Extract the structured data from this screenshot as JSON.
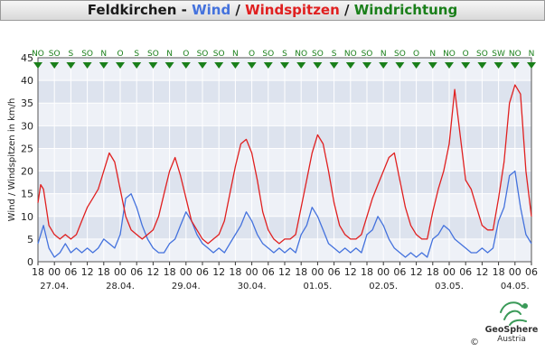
{
  "title": {
    "station": "Feldkirchen",
    "sep1": " - ",
    "wind": "Wind",
    "sep2": " / ",
    "gusts": "Windspitzen",
    "sep3": " / ",
    "direction": "Windrichtung"
  },
  "colors": {
    "wind": "#4472dd",
    "gusts": "#e02020",
    "direction": "#1a7f1a",
    "band_dark": "#dde3ee",
    "band_light": "#eef1f7"
  },
  "logo": {
    "brand": "GeoSphere",
    "country": "Austria",
    "copyright": "©"
  },
  "chart_data": {
    "type": "line",
    "ylabel": "Wind / Windspitzen in km/h",
    "ylim": [
      0,
      45
    ],
    "yticks": [
      0,
      5,
      10,
      15,
      20,
      25,
      30,
      35,
      40,
      45
    ],
    "xlim": [
      0,
      180
    ],
    "x_unit": "hours since 27.04. 18:00",
    "xtick_labels": [
      "18",
      "00",
      "06",
      "12",
      "18",
      "00",
      "06",
      "12",
      "18",
      "00",
      "06",
      "12",
      "18",
      "00",
      "06",
      "12",
      "18",
      "00",
      "06",
      "12",
      "18",
      "00",
      "06",
      "12",
      "18",
      "00",
      "06",
      "12",
      "18",
      "00",
      "06"
    ],
    "date_labels": [
      "27.04.",
      "28.04.",
      "29.04.",
      "30.04.",
      "01.05.",
      "02.05.",
      "03.05.",
      "04.05."
    ],
    "direction_labels": [
      "NO",
      "SO",
      "S",
      "SO",
      "N",
      "O",
      "S",
      "SO",
      "N",
      "O",
      "SO",
      "SO",
      "N",
      "O",
      "SO",
      "S",
      "NO",
      "SO",
      "S",
      "NO",
      "SO",
      "N",
      "SO",
      "O",
      "N",
      "NO",
      "O",
      "SO",
      "SW",
      "NO",
      "N"
    ],
    "series": [
      {
        "name": "Wind",
        "color": "#4472dd",
        "points": [
          [
            0,
            4
          ],
          [
            2,
            8
          ],
          [
            4,
            3
          ],
          [
            6,
            1
          ],
          [
            8,
            2
          ],
          [
            10,
            4
          ],
          [
            12,
            2
          ],
          [
            14,
            3
          ],
          [
            16,
            2
          ],
          [
            18,
            3
          ],
          [
            20,
            2
          ],
          [
            22,
            3
          ],
          [
            24,
            5
          ],
          [
            26,
            4
          ],
          [
            28,
            3
          ],
          [
            30,
            6
          ],
          [
            32,
            14
          ],
          [
            34,
            15
          ],
          [
            36,
            12
          ],
          [
            38,
            8
          ],
          [
            40,
            5
          ],
          [
            42,
            3
          ],
          [
            44,
            2
          ],
          [
            46,
            2
          ],
          [
            48,
            4
          ],
          [
            50,
            5
          ],
          [
            52,
            8
          ],
          [
            54,
            11
          ],
          [
            56,
            9
          ],
          [
            58,
            6
          ],
          [
            60,
            4
          ],
          [
            62,
            3
          ],
          [
            64,
            2
          ],
          [
            66,
            3
          ],
          [
            68,
            2
          ],
          [
            70,
            4
          ],
          [
            72,
            6
          ],
          [
            74,
            8
          ],
          [
            76,
            11
          ],
          [
            78,
            9
          ],
          [
            80,
            6
          ],
          [
            82,
            4
          ],
          [
            84,
            3
          ],
          [
            86,
            2
          ],
          [
            88,
            3
          ],
          [
            90,
            2
          ],
          [
            92,
            3
          ],
          [
            94,
            2
          ],
          [
            96,
            6
          ],
          [
            98,
            8
          ],
          [
            100,
            12
          ],
          [
            102,
            10
          ],
          [
            104,
            7
          ],
          [
            106,
            4
          ],
          [
            108,
            3
          ],
          [
            110,
            2
          ],
          [
            112,
            3
          ],
          [
            114,
            2
          ],
          [
            116,
            3
          ],
          [
            118,
            2
          ],
          [
            120,
            6
          ],
          [
            122,
            7
          ],
          [
            124,
            10
          ],
          [
            126,
            8
          ],
          [
            128,
            5
          ],
          [
            130,
            3
          ],
          [
            132,
            2
          ],
          [
            134,
            1
          ],
          [
            136,
            2
          ],
          [
            138,
            1
          ],
          [
            140,
            2
          ],
          [
            142,
            1
          ],
          [
            144,
            5
          ],
          [
            146,
            6
          ],
          [
            148,
            8
          ],
          [
            150,
            7
          ],
          [
            152,
            5
          ],
          [
            154,
            4
          ],
          [
            156,
            3
          ],
          [
            158,
            2
          ],
          [
            160,
            2
          ],
          [
            162,
            3
          ],
          [
            164,
            2
          ],
          [
            166,
            3
          ],
          [
            168,
            9
          ],
          [
            170,
            12
          ],
          [
            172,
            19
          ],
          [
            174,
            20
          ],
          [
            176,
            12
          ],
          [
            178,
            6
          ],
          [
            180,
            4
          ]
        ]
      },
      {
        "name": "Windspitzen",
        "color": "#e02020",
        "points": [
          [
            0,
            13
          ],
          [
            1,
            17
          ],
          [
            2,
            16
          ],
          [
            3,
            12
          ],
          [
            4,
            8
          ],
          [
            6,
            6
          ],
          [
            8,
            5
          ],
          [
            10,
            6
          ],
          [
            12,
            5
          ],
          [
            14,
            6
          ],
          [
            16,
            9
          ],
          [
            18,
            12
          ],
          [
            20,
            14
          ],
          [
            22,
            16
          ],
          [
            24,
            20
          ],
          [
            26,
            24
          ],
          [
            28,
            22
          ],
          [
            30,
            16
          ],
          [
            32,
            10
          ],
          [
            34,
            7
          ],
          [
            36,
            6
          ],
          [
            38,
            5
          ],
          [
            40,
            6
          ],
          [
            42,
            7
          ],
          [
            44,
            10
          ],
          [
            46,
            15
          ],
          [
            48,
            20
          ],
          [
            50,
            23
          ],
          [
            52,
            19
          ],
          [
            54,
            14
          ],
          [
            56,
            9
          ],
          [
            58,
            7
          ],
          [
            60,
            5
          ],
          [
            62,
            4
          ],
          [
            64,
            5
          ],
          [
            66,
            6
          ],
          [
            68,
            9
          ],
          [
            70,
            15
          ],
          [
            72,
            21
          ],
          [
            74,
            26
          ],
          [
            76,
            27
          ],
          [
            78,
            24
          ],
          [
            80,
            18
          ],
          [
            82,
            11
          ],
          [
            84,
            7
          ],
          [
            86,
            5
          ],
          [
            88,
            4
          ],
          [
            90,
            5
          ],
          [
            92,
            5
          ],
          [
            94,
            6
          ],
          [
            96,
            12
          ],
          [
            98,
            18
          ],
          [
            100,
            24
          ],
          [
            102,
            28
          ],
          [
            104,
            26
          ],
          [
            106,
            20
          ],
          [
            108,
            13
          ],
          [
            110,
            8
          ],
          [
            112,
            6
          ],
          [
            114,
            5
          ],
          [
            116,
            5
          ],
          [
            118,
            6
          ],
          [
            120,
            10
          ],
          [
            122,
            14
          ],
          [
            124,
            17
          ],
          [
            126,
            20
          ],
          [
            128,
            23
          ],
          [
            130,
            24
          ],
          [
            132,
            18
          ],
          [
            134,
            12
          ],
          [
            136,
            8
          ],
          [
            138,
            6
          ],
          [
            140,
            5
          ],
          [
            142,
            5
          ],
          [
            144,
            11
          ],
          [
            146,
            16
          ],
          [
            148,
            20
          ],
          [
            150,
            26
          ],
          [
            152,
            38
          ],
          [
            154,
            28
          ],
          [
            156,
            18
          ],
          [
            158,
            16
          ],
          [
            160,
            12
          ],
          [
            162,
            8
          ],
          [
            164,
            7
          ],
          [
            166,
            7
          ],
          [
            168,
            14
          ],
          [
            170,
            22
          ],
          [
            172,
            35
          ],
          [
            174,
            39
          ],
          [
            176,
            37
          ],
          [
            178,
            20
          ],
          [
            180,
            10
          ]
        ]
      }
    ]
  }
}
